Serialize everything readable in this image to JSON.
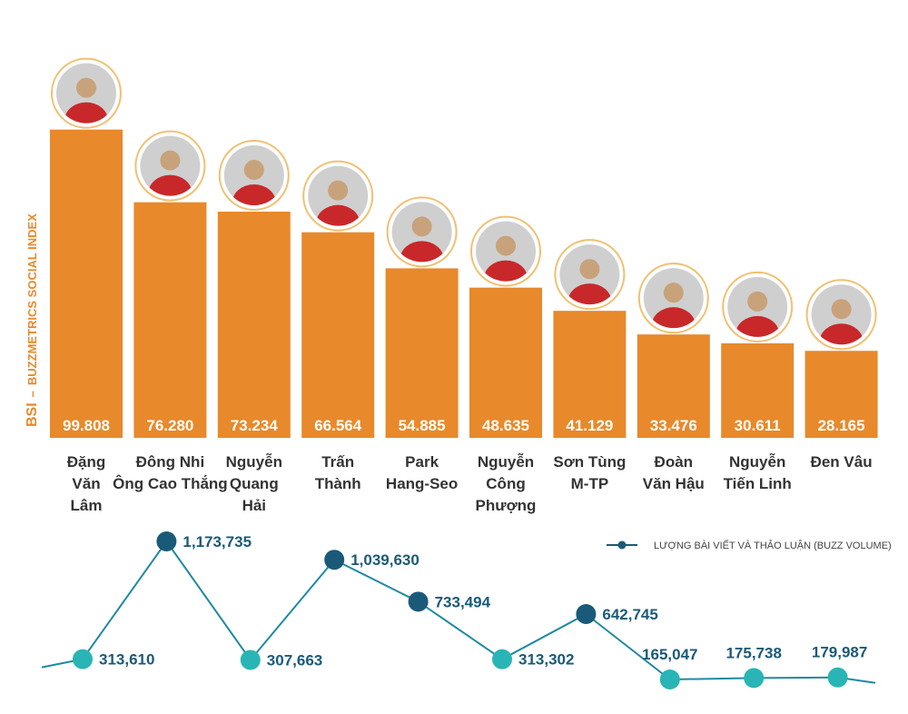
{
  "ylabel_prefix": "BSI",
  "ylabel_text": "BUZZMETRICS SOCIAL INDEX",
  "legend": "LƯỢNG BÀI VIẾT VÀ THẢO LUẬN (BUZZ VOLUME)",
  "colors": {
    "bar": "#e8892b",
    "bar_value_text": "#ffffff",
    "line": "#1f8aa0",
    "marker_teal": "#29b5b5",
    "marker_dark": "#1a5a78",
    "line_label": "#1a5a78",
    "category_label": "#333333"
  },
  "chart_data": [
    {
      "type": "bar",
      "title": "",
      "ylabel": "BSI – BUZZMETRICS SOCIAL INDEX",
      "categories": [
        [
          "Đặng",
          "Văn",
          "Lâm"
        ],
        [
          "Đông Nhi",
          "Ông Cao Thắng"
        ],
        [
          "Nguyễn",
          "Quang",
          "Hải"
        ],
        [
          "Trấn",
          "Thành"
        ],
        [
          "Park",
          "Hang-Seo"
        ],
        [
          "Nguyễn",
          "Công",
          "Phượng"
        ],
        [
          "Sơn Tùng",
          "M-TP"
        ],
        [
          "Đoàn",
          "Văn Hậu"
        ],
        [
          "Nguyễn",
          "Tiến Linh"
        ],
        [
          "Đen Vâu"
        ]
      ],
      "values": [
        99.808,
        76.28,
        73.234,
        66.564,
        54.885,
        48.635,
        41.129,
        33.476,
        30.611,
        28.165
      ],
      "value_labels": [
        "99.808",
        "76.280",
        "73.234",
        "66.564",
        "54.885",
        "48.635",
        "41.129",
        "33.476",
        "30.611",
        "28.165"
      ],
      "ylim": [
        0,
        100
      ]
    },
    {
      "type": "line",
      "title": "",
      "series": [
        {
          "name": "LƯỢNG BÀI VIẾT VÀ THẢO LUẬN (BUZZ VOLUME)",
          "values": [
            313610,
            1173735,
            307663,
            1039630,
            733494,
            313302,
            642745,
            165047,
            175738,
            179987
          ],
          "value_labels": [
            "313,610",
            "1,173,735",
            "307,663",
            "1,039,630",
            "733,494",
            "313,302",
            "642,745",
            "165,047",
            "175,738",
            "179,987"
          ]
        }
      ]
    }
  ]
}
